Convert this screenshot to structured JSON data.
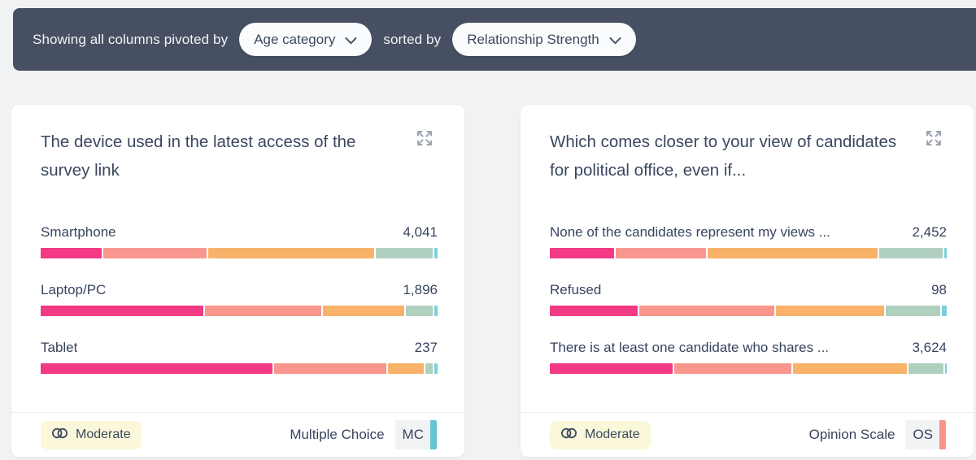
{
  "toolbar": {
    "prefix_label": "Showing all columns pivoted by",
    "pivot_dropdown": {
      "value": "Age category"
    },
    "sorted_by_label": "sorted by",
    "sort_dropdown": {
      "value": "Relationship Strength"
    }
  },
  "colors": {
    "segment_palette": [
      "#F23A85",
      "#F9968E",
      "#F8B269",
      "#AFD0BE",
      "#7DCFDC"
    ],
    "topbar_bg": "#474F63",
    "badge_bg": "#FBF7DA",
    "page_bg": "#F0F2F4"
  },
  "cards": [
    {
      "title": "The device used in the latest access of the survey link",
      "rows": [
        {
          "label": "Smartphone",
          "value": "4,041",
          "segments": [
            15.2,
            25.8,
            41.6,
            14.2,
            0.8
          ]
        },
        {
          "label": "Laptop/PC",
          "value": "1,896",
          "segments": [
            40.6,
            29.0,
            20.3,
            6.7,
            0.8
          ]
        },
        {
          "label": "Tablet",
          "value": "237",
          "segments": [
            57.7,
            28.0,
            9.0,
            1.7,
            0.9
          ]
        }
      ],
      "footer": {
        "strength_label": "Moderate",
        "type_label": "Multiple Choice",
        "type_abbr": "MC",
        "type_color": "#67C4D0"
      }
    },
    {
      "title": "Which comes closer to your view of candidates for political office, even if...",
      "rows": [
        {
          "label": "None of the candidates represent my views ...",
          "value": "2,452",
          "segments": [
            16.0,
            22.6,
            42.5,
            15.8,
            0.6
          ]
        },
        {
          "label": "Refused",
          "value": "98",
          "segments": [
            22.0,
            33.8,
            27.0,
            13.6,
            1.2
          ]
        },
        {
          "label": "There is at least one candidate who shares ...",
          "value": "3,624",
          "segments": [
            30.4,
            29.0,
            28.3,
            8.6,
            0.5
          ]
        }
      ],
      "footer": {
        "strength_label": "Moderate",
        "type_label": "Opinion Scale",
        "type_abbr": "OS",
        "type_color": "#F8948A"
      }
    }
  ]
}
